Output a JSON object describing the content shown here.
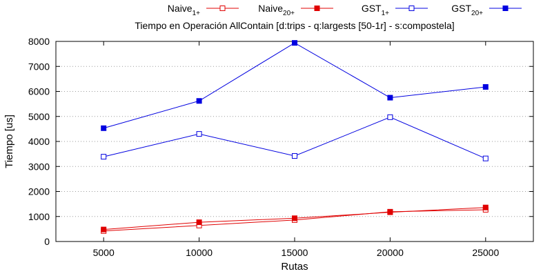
{
  "chart_data": {
    "type": "line",
    "title": "Tiempo en Operación AllContain [d:trips - q:largests [50-1r] - s:compostela]",
    "xlabel": "Rutas",
    "ylabel": "Tiempo [us]",
    "x": [
      5000,
      10000,
      15000,
      20000,
      25000
    ],
    "xlim": [
      2500,
      27500
    ],
    "ylim": [
      0,
      8000
    ],
    "yticks": [
      0,
      1000,
      2000,
      3000,
      4000,
      5000,
      6000,
      7000,
      8000
    ],
    "grid": "horizontal dotted",
    "legend_position": "top",
    "series": [
      {
        "name_base": "Naive",
        "name_sub": "1+",
        "color": "#e00000",
        "marker": "open-square",
        "values": [
          420,
          640,
          860,
          1190,
          1270
        ]
      },
      {
        "name_base": "Naive",
        "name_sub": "20+",
        "color": "#e00000",
        "marker": "filled-square",
        "values": [
          480,
          770,
          930,
          1170,
          1360
        ]
      },
      {
        "name_base": "GST",
        "name_sub": "1+",
        "color": "#0000e0",
        "marker": "open-square",
        "values": [
          3390,
          4300,
          3420,
          4970,
          3320
        ]
      },
      {
        "name_base": "GST",
        "name_sub": "20+",
        "color": "#0000e0",
        "marker": "filled-square",
        "values": [
          4530,
          5620,
          7940,
          5750,
          6180
        ]
      }
    ]
  }
}
